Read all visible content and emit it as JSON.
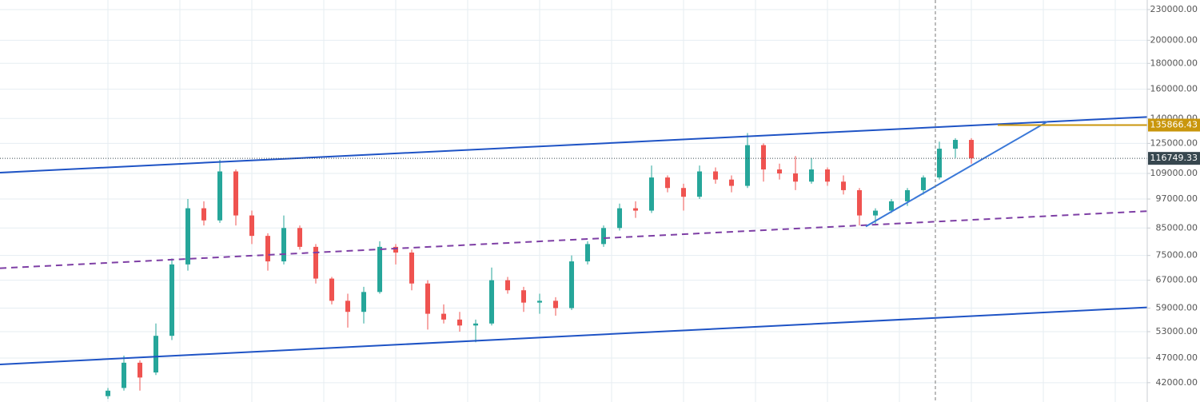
{
  "chart_data": {
    "type": "candlestick",
    "log_scale": true,
    "grid": true,
    "ylim": [
      38460,
      240280
    ],
    "xlim": [
      -6.75,
      65
    ],
    "yticks": [
      {
        "value": 42000,
        "label": "42000.00"
      },
      {
        "value": 47000,
        "label": "47000.00"
      },
      {
        "value": 53000,
        "label": "53000.00"
      },
      {
        "value": 59000,
        "label": "59000.00"
      },
      {
        "value": 67000,
        "label": "67000.00"
      },
      {
        "value": 75000,
        "label": "75000.00"
      },
      {
        "value": 85000,
        "label": "85000.00"
      },
      {
        "value": 97000,
        "label": "97000.00"
      },
      {
        "value": 109000,
        "label": "109000.00"
      },
      {
        "value": 125000,
        "label": "125000.00"
      },
      {
        "value": 140000,
        "label": "140000.00"
      },
      {
        "value": 160000,
        "label": "160000.00"
      },
      {
        "value": 180000,
        "label": "180000.00"
      },
      {
        "value": 200000,
        "label": "200000.00"
      },
      {
        "value": 230000,
        "label": "230000.00"
      }
    ],
    "up_color": "#26a69a",
    "down_color": "#ef5350",
    "open": [
      39500,
      41000,
      46000,
      44000,
      52000,
      72000,
      93000,
      88000,
      110000,
      90000,
      82000,
      73000,
      85000,
      78000,
      67500,
      61000,
      58000,
      63500,
      78000,
      76000,
      66000,
      57500,
      56000,
      54500,
      55000,
      67000,
      64000,
      60500,
      61000,
      59000,
      73000,
      79000,
      85000,
      93000,
      92000,
      107000,
      102000,
      98000,
      110000,
      106000,
      103000,
      124000,
      111000,
      109000,
      105000,
      111000,
      105000,
      101000,
      90000,
      92000,
      96000,
      101000,
      107000,
      122000,
      127000
    ],
    "high": [
      41000,
      47500,
      46500,
      55000,
      74000,
      97000,
      96000,
      116000,
      111000,
      92000,
      83000,
      90000,
      86000,
      79000,
      68000,
      63000,
      65000,
      80000,
      79000,
      77000,
      67000,
      60000,
      58000,
      56000,
      71000,
      68000,
      65000,
      63000,
      62000,
      75000,
      80000,
      86000,
      95000,
      96000,
      113000,
      108000,
      104000,
      113000,
      112000,
      108000,
      131000,
      125000,
      114000,
      118000,
      117000,
      112000,
      108000,
      102000,
      93000,
      97000,
      102000,
      108000,
      126000,
      128000,
      128000
    ],
    "low": [
      39000,
      40500,
      40500,
      43500,
      51000,
      70000,
      86000,
      87000,
      86000,
      79000,
      70000,
      72000,
      77000,
      66000,
      60000,
      54000,
      55000,
      63000,
      72000,
      64000,
      53500,
      55000,
      53000,
      50500,
      54500,
      63000,
      58000,
      57500,
      57000,
      58500,
      72000,
      78000,
      84000,
      89000,
      91000,
      100000,
      92000,
      97000,
      104000,
      100000,
      102000,
      105000,
      106000,
      101000,
      104000,
      103000,
      99000,
      86000,
      86000,
      91000,
      94000,
      99000,
      106000,
      117000,
      114000
    ],
    "close": [
      40500,
      46000,
      43000,
      52000,
      72000,
      93000,
      88000,
      110000,
      90000,
      82000,
      73000,
      85000,
      78000,
      67500,
      61000,
      58000,
      63500,
      78000,
      76000,
      66000,
      57500,
      56000,
      54500,
      55000,
      67000,
      64000,
      60500,
      61000,
      59000,
      73000,
      79000,
      85000,
      93000,
      92000,
      107000,
      102000,
      98000,
      110000,
      106000,
      103000,
      124000,
      111000,
      109000,
      105000,
      111000,
      105000,
      101000,
      90000,
      92000,
      96000,
      101000,
      107000,
      122000,
      127000,
      116749.33
    ],
    "drawings": [
      {
        "color": "#1e53c5",
        "dashed": false,
        "x": [
          -6.75,
          65
        ],
        "price": [
          109400,
          141000
        ]
      },
      {
        "color": "#1e53c5",
        "dashed": false,
        "x": [
          -6.75,
          65
        ],
        "price": [
          45650,
          59200
        ]
      },
      {
        "color": "#7e3fa5",
        "dashed": true,
        "x": [
          -6.75,
          65
        ],
        "price": [
          70760,
          91800
        ]
      },
      {
        "color": "#3a78d8",
        "dashed": false,
        "x": [
          47.4,
          58.75
        ],
        "price": [
          85600,
          138000
        ]
      },
      {
        "color": "#c9960c",
        "dashed": false,
        "x": [
          55.65,
          65
        ],
        "price": [
          135866.43,
          135866.43
        ]
      }
    ]
  }
}
